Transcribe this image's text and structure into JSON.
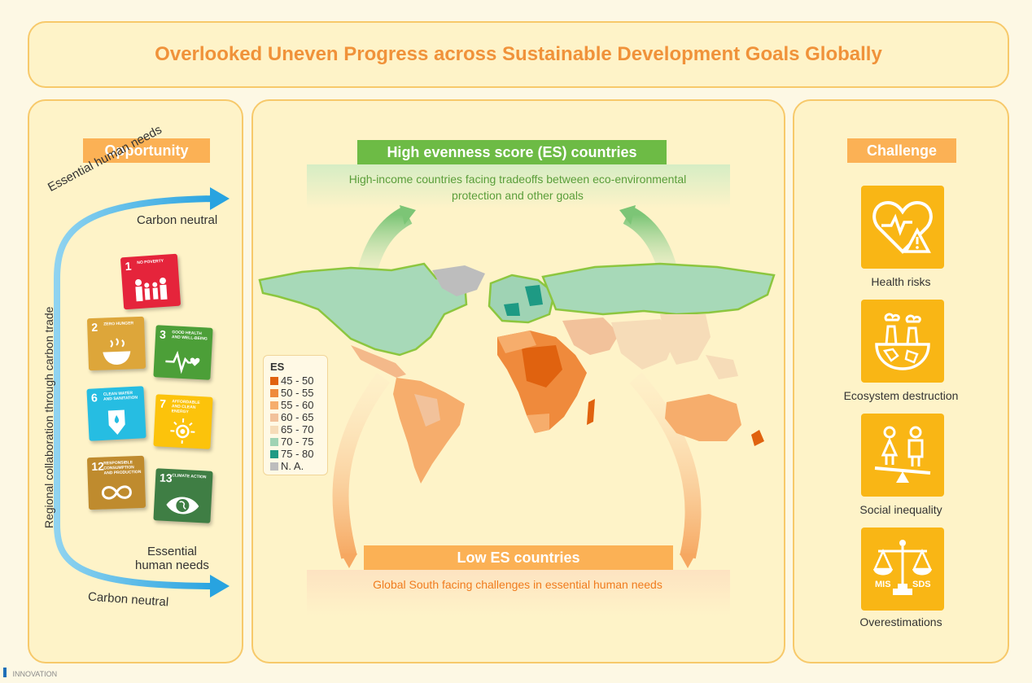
{
  "title": "Overlooked Uneven Progress across Sustainable Development Goals Globally",
  "opportunity": {
    "tag": "Opportunity",
    "top_curve_label": "Essential human needs",
    "top_arrow_label": "Carbon neutral",
    "vertical_label": "Regional collaboration through carbon trade",
    "bottom_label_line1": "Essential",
    "bottom_label_line2": "human needs",
    "bottom_arrow_label": "Carbon neutral",
    "sdg_cards": [
      {
        "num": "1",
        "name": "NO POVERTY",
        "color": "#e5243b"
      },
      {
        "num": "2",
        "name": "ZERO HUNGER",
        "color": "#dda63a"
      },
      {
        "num": "3",
        "name": "GOOD HEALTH AND WELL-BEING",
        "color": "#4c9f38"
      },
      {
        "num": "6",
        "name": "CLEAN WATER AND SANITATION",
        "color": "#26bde2"
      },
      {
        "num": "7",
        "name": "AFFORDABLE AND CLEAN ENERGY",
        "color": "#fcc30b"
      },
      {
        "num": "12",
        "name": "RESPONSIBLE CONSUMPTION AND PRODUCTION",
        "color": "#bf8b2e"
      },
      {
        "num": "13",
        "name": "CLIMATE ACTION",
        "color": "#3f7e44"
      }
    ]
  },
  "center": {
    "high_tag": "High evenness score (ES) countries",
    "high_desc_line1": "High-income countries facing tradeoffs between eco-environmental",
    "high_desc_line2": "protection and other goals",
    "low_tag": "Low ES countries",
    "low_desc": "Global South facing challenges in essential human needs",
    "legend": {
      "title": "ES",
      "items": [
        {
          "label": "45 - 50",
          "color": "#e0620f"
        },
        {
          "label": "50 - 55",
          "color": "#ef8a3c"
        },
        {
          "label": "55 - 60",
          "color": "#f6ad6c"
        },
        {
          "label": "60 - 65",
          "color": "#f2c29b"
        },
        {
          "label": "65 - 70",
          "color": "#f6dcb8"
        },
        {
          "label": "70 - 75",
          "color": "#9fd3b4"
        },
        {
          "label": "75 - 80",
          "color": "#1e9a84"
        },
        {
          "label": "N. A.",
          "color": "#bdbdbd"
        }
      ]
    }
  },
  "challenge": {
    "tag": "Challenge",
    "items": [
      {
        "label": "Health risks",
        "icon": "heart-warning-icon"
      },
      {
        "label": "Ecosystem destruction",
        "icon": "factory-earth-icon"
      },
      {
        "label": "Social inequality",
        "icon": "seesaw-people-icon"
      },
      {
        "label": "Overestimations",
        "icon": "balance-scale-icon"
      }
    ],
    "scale_left": "MIS",
    "scale_right": "SDS"
  },
  "footer": "INNOVATION"
}
